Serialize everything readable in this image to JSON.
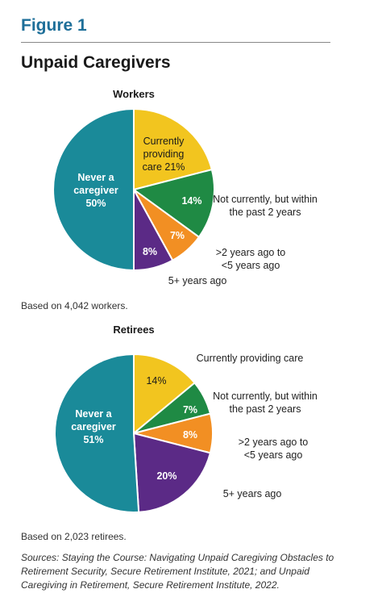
{
  "figure_label": "Figure 1",
  "title": "Unpaid Caregivers",
  "colors": {
    "heading": "#1e6f99",
    "never": "#1a8a99",
    "current": "#f2c51f",
    "recent": "#1f8a44",
    "mid": "#f28f23",
    "old": "#5b2a86"
  },
  "chart_data": [
    {
      "type": "pie",
      "title": "Workers",
      "labels": [
        "Currently providing care",
        "Not currently, but within the past 2 years",
        ">2 years ago to <5 years ago",
        "5+ years ago",
        "Never a caregiver"
      ],
      "values": [
        21,
        14,
        7,
        8,
        50
      ],
      "inside_labels": [
        "Currently providing care 21%",
        "14%",
        "7%",
        "8%",
        "Never a caregiver 50%"
      ],
      "note": "Based on 4,042 workers."
    },
    {
      "type": "pie",
      "title": "Retirees",
      "labels": [
        "Currently providing care",
        "Not currently, but within the past 2 years",
        ">2 years ago to <5 years ago",
        "5+ years ago",
        "Never a caregiver"
      ],
      "values": [
        14,
        7,
        8,
        20,
        51
      ],
      "inside_labels": [
        "14%",
        "7%",
        "8%",
        "20%",
        "Never a caregiver 51%"
      ],
      "note": "Based on 2,023 retirees."
    }
  ],
  "sources": "Sources: Staying the Course: Navigating Unpaid Caregiving Obstacles to Retirement Security, Secure Retirement Institute, 2021; and Unpaid Caregiving in Retirement, Secure Retirement Institute, 2022."
}
